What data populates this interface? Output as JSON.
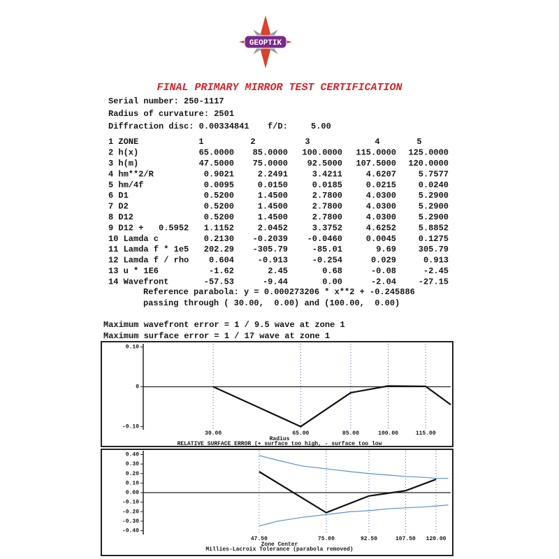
{
  "logo": "GEOPTIK",
  "title": "FINAL PRIMARY MIRROR TEST CERTIFICATION",
  "info": {
    "serial": "Serial number: 250-1117",
    "radius": "Radius of curvature: 2501",
    "diffraction": "Diffraction disc: 0.00334841",
    "fd_label": "f/D:",
    "fd_value": "5.00"
  },
  "table": {
    "rows": [
      [
        "1 ZONE",
        "1",
        "2",
        "3",
        "4",
        "5"
      ],
      [
        "2 h(x)",
        "65.0000",
        "85.0000",
        "100.0000",
        "115.0000",
        "125.0000"
      ],
      [
        "3 h(m)",
        "47.5000",
        "75.0000",
        "92.5000",
        "107.5000",
        "120.0000"
      ],
      [
        "4 hm**2/R",
        "0.9021",
        "2.2491",
        "3.4211",
        "4.6207",
        "5.7577"
      ],
      [
        "5 hm/4f",
        "0.0095",
        "0.0150",
        "0.0185",
        "0.0215",
        "0.0240"
      ],
      [
        "6 D1",
        "0.5200",
        "1.4500",
        "2.7800",
        "4.0300",
        "5.2900"
      ],
      [
        "7 D2",
        "0.5200",
        "1.4500",
        "2.7800",
        "4.0300",
        "5.2900"
      ],
      [
        "8 D12",
        "0.5200",
        "1.4500",
        "2.7800",
        "4.0300",
        "5.2900"
      ],
      [
        "9 D12 +   0.5952",
        "1.1152",
        "2.0452",
        "3.3752",
        "4.6252",
        "5.8852"
      ],
      [
        "10 Lamda c",
        "0.2130",
        "-0.2039",
        "-0.0460",
        "0.0045",
        "0.1275"
      ],
      [
        "11 Lamda f * 1e5",
        "202.29",
        "-305.79",
        "-85.01",
        "9.69",
        "305.79"
      ],
      [
        "12 Lamda f / rho",
        "0.604",
        "-0.913",
        "-0.254",
        "0.029",
        "0.913"
      ],
      [
        "13 u * 1E6",
        "-1.62",
        "2.45",
        "0.68",
        "-0.08",
        "-2.45"
      ],
      [
        "14 Wavefront",
        "-57.53",
        "-9.44",
        "0.00",
        "-2.04",
        "-27.15"
      ]
    ]
  },
  "reference": [
    "Reference parabola: y = 0.000273206 * x**2 + -0.245886",
    "passing through ( 30.00,  0.00) and (100.00,  0.00)"
  ],
  "summary": [
    "Maximum wavefront error = 1 / 9.5 wave at zone 1",
    "Maximum surface error = 1 / 17 wave at zone 1"
  ],
  "chart_data": [
    {
      "type": "line",
      "title": "RELATIVE SURFACE ERROR (+ surface too high, - surface too low",
      "xlabel": "Radius",
      "series": [
        {
          "color": "#111111",
          "x": [
            30,
            65,
            85,
            100,
            115,
            125
          ],
          "values": [
            0,
            -0.1,
            -0.015,
            0.002,
            0.001,
            -0.045
          ]
        }
      ],
      "xlim": [
        2,
        125
      ],
      "ylim": [
        -0.108,
        0.108
      ],
      "xticks": [
        {
          "value": 30,
          "label": "30.00"
        },
        {
          "value": 65,
          "label": "65.00"
        },
        {
          "value": 85,
          "label": "85.00"
        },
        {
          "value": 100,
          "label": "100.00"
        },
        {
          "value": 115,
          "label": "115.00"
        }
      ],
      "yticks": [
        {
          "value": 0.1,
          "label": "0.10"
        },
        0,
        {
          "value": -0.1,
          "label": "-0.10"
        }
      ],
      "grid": true
    },
    {
      "type": "line",
      "title": "Millies-Lacroix Tolerance (parabola removed)",
      "xlabel": "Zone Center",
      "series": [
        {
          "color": "#111111",
          "x": [
            47.5,
            75,
            92.5,
            107.5,
            120
          ],
          "values": [
            0.22,
            -0.21,
            -0.035,
            0.02,
            0.14
          ]
        },
        {
          "color": "#5b8fd6",
          "x": [
            47.5,
            55,
            65,
            75,
            85,
            92.5,
            100,
            107.5,
            115,
            120,
            125
          ],
          "values": [
            0.39,
            0.34,
            0.28,
            0.25,
            0.22,
            0.2,
            0.185,
            0.17,
            0.16,
            0.15,
            0.15
          ]
        },
        {
          "color": "#5b8fd6",
          "x": [
            47.5,
            55,
            65,
            75,
            85,
            92.5,
            100,
            107.5,
            115,
            120,
            125
          ],
          "values": [
            -0.35,
            -0.3,
            -0.26,
            -0.23,
            -0.2,
            -0.19,
            -0.17,
            -0.16,
            -0.15,
            -0.14,
            -0.13
          ]
        }
      ],
      "xlim": [
        0,
        126
      ],
      "ylim": [
        -0.44,
        0.44
      ],
      "xticks": [
        {
          "value": 47.5,
          "label": "47.50"
        },
        {
          "value": 75,
          "label": "75.00"
        },
        {
          "value": 92.5,
          "label": "92.50"
        },
        {
          "value": 107.5,
          "label": "107.50"
        },
        {
          "value": 120,
          "label": "120.00"
        }
      ],
      "yticks": [
        {
          "value": 0.4,
          "label": "0.40"
        },
        {
          "value": 0.3,
          "label": "0.30"
        },
        {
          "value": 0.2,
          "label": "0.20"
        },
        {
          "value": 0.1,
          "label": "0.10"
        },
        {
          "value": 0,
          "label": "0.00"
        },
        {
          "value": -0.1,
          "label": "-0.10"
        },
        {
          "value": -0.2,
          "label": "-0.20"
        },
        {
          "value": -0.3,
          "label": "-0.30"
        },
        {
          "value": -0.4,
          "label": "-0.40"
        }
      ],
      "grid": true
    }
  ]
}
